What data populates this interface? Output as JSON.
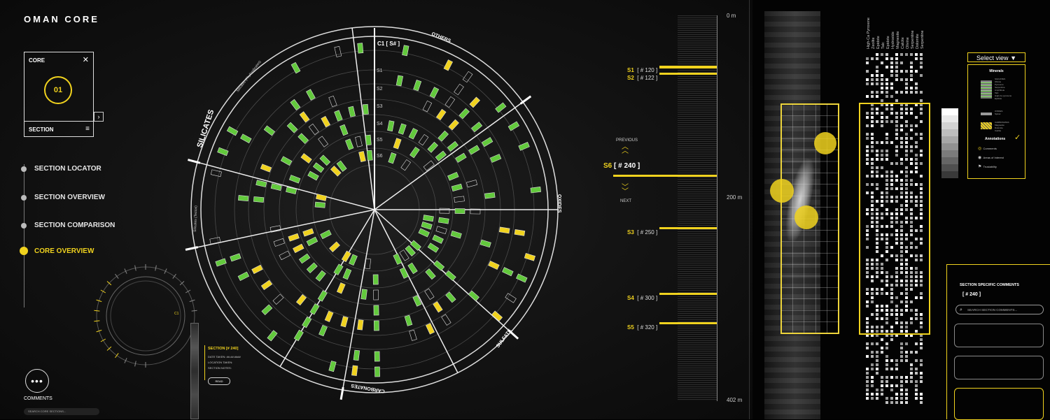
{
  "app": {
    "title": "OMAN CORE"
  },
  "core_card": {
    "header": "CORE",
    "close": "✕",
    "number": "01",
    "section_label": "SECTION",
    "menu": "≡",
    "arrow": "›"
  },
  "nav": {
    "items": [
      {
        "label": "SECTION LOCATOR"
      },
      {
        "label": "SECTION OVERVIEW"
      },
      {
        "label": "SECTION COMPARISON"
      },
      {
        "label": "CORE OVERVIEW"
      }
    ]
  },
  "comments": {
    "icon": "•••",
    "label": "COMMENTS",
    "search_placeholder": "SEARCH CORE SECTIONS..."
  },
  "section_info": {
    "title": "SECTION [# 240]",
    "lines": [
      "DATE TAKEN: ##.##.####",
      "LOCATION TAKEN:",
      "SECTION NOTES:"
    ],
    "button": "READ"
  },
  "radial": {
    "center_label": "C1 [ S# ]",
    "ring_labels": [
      "S1",
      "S2",
      "S3",
      "S4",
      "S5",
      "S6"
    ],
    "groups": [
      "SILICATES",
      "OTHERS",
      "OXIDES",
      "SULFATE",
      "CARBONATES"
    ],
    "subgroups": [
      "Silicates (Phyllosilicates)",
      "Silicates (Tectos)"
    ]
  },
  "depth": {
    "top": "0 m",
    "mid": "200 m",
    "bottom": "402 m"
  },
  "sections": [
    {
      "label": "S1",
      "num": "[ # 120 ]"
    },
    {
      "label": "S2",
      "num": "[ # 122 ]"
    },
    {
      "label": "S3",
      "num": "[ # 250 ]"
    },
    {
      "label": "S4",
      "num": "[ # 300 ]"
    },
    {
      "label": "S5",
      "num": "[ # 320 ]"
    }
  ],
  "current_section": {
    "label": "S6",
    "num": "[ # 240 ]",
    "previous": "PREVIOUS",
    "next": "NEXT"
  },
  "minerals_columns": [
    "High-Ca Pyroxene",
    "Zeolite",
    "Epidote",
    "Talc",
    "Epidote",
    "Hydroxide",
    "Magnesite",
    "Calcite",
    "Olivine",
    "Serpentine",
    "Dolomite",
    "Serpentine"
  ],
  "view_selector": {
    "label": "Select view",
    "icon": "▼"
  },
  "legend": {
    "title": "Minerals",
    "groups": [
      {
        "name": "SILICATES",
        "items": [
          "Olivine",
          "Pyroxene",
          "Serpentine",
          "Amphibole",
          "Talc",
          "High-Ca pyroxene",
          "Epidote"
        ]
      },
      {
        "name": "OXIDES",
        "items": [
          "Spinel"
        ]
      },
      {
        "name": "CARBONATES",
        "items": [
          "Magnesite",
          "Dolomite",
          "Calcite"
        ]
      }
    ],
    "annotations_title": "Annotations",
    "check": "✓",
    "annotations": [
      "Comments",
      "Areas of Interest",
      "Trustability"
    ]
  },
  "section_comments": {
    "title": "SECTION SPECIFIC COMMENTS",
    "sub": "[ # 240 ]",
    "search_placeholder": "SEARCH SECTION COMMENTS..."
  },
  "colors": {
    "accent": "#f0d21e",
    "mineral": "#62c93c",
    "bg": "#141414"
  }
}
